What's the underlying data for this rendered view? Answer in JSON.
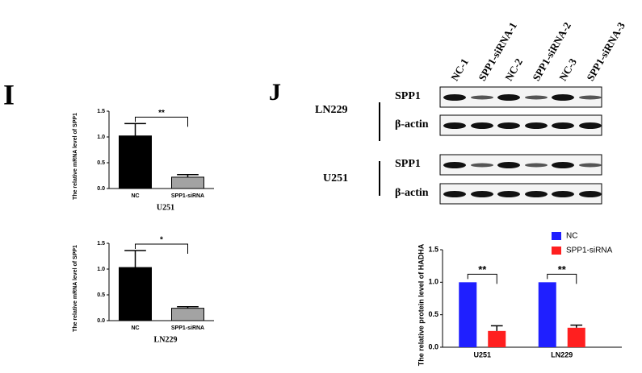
{
  "panels": {
    "left": "I",
    "right": "J"
  },
  "blot": {
    "lanes": [
      "NC-1",
      "SPP1-siRNA-1",
      "NC-2",
      "SPP1-siRNA-2",
      "NC-3",
      "SPP1-siRNA-3"
    ],
    "groups": [
      {
        "cell_line": "LN229",
        "rows": [
          "SPP1",
          "β-actin"
        ]
      },
      {
        "cell_line": "U251",
        "rows": [
          "SPP1",
          "β-actin"
        ]
      }
    ]
  },
  "chart_data": [
    {
      "type": "bar",
      "categories": [
        "NC",
        "SPP1-siRNA"
      ],
      "values": [
        1.02,
        0.22
      ],
      "errors": [
        0.24,
        0.05
      ],
      "colors": [
        "#000000",
        "#a3a3a3"
      ],
      "xlabel": "U251",
      "ylabel": "The relative mRNA level of SPP1",
      "ylim": [
        0,
        1.5
      ],
      "yticks": [
        {
          "value": 0,
          "label": "0.0"
        },
        0.5,
        {
          "value": 1,
          "label": "1.0"
        },
        1.5
      ],
      "significance": "**"
    },
    {
      "type": "bar",
      "categories": [
        "NC",
        "SPP1-siRNA"
      ],
      "values": [
        1.03,
        0.24
      ],
      "errors": [
        0.33,
        0.03
      ],
      "colors": [
        "#000000",
        "#a3a3a3"
      ],
      "xlabel": "LN229",
      "ylabel": "The relative mRNA level of SPP1",
      "ylim": [
        0,
        1.5
      ],
      "yticks": [
        {
          "value": 0,
          "label": "0.0"
        },
        0.5,
        {
          "value": 1,
          "label": "1.0"
        },
        1.5
      ],
      "significance": "*"
    },
    {
      "type": "grouped-bar",
      "categories": [
        "U251",
        "LN229"
      ],
      "ylabel": "The relative protein level of HADHA",
      "series": [
        {
          "name": "NC",
          "color": "#1f1fff",
          "values": [
            1.0,
            1.0
          ]
        },
        {
          "name": "SPP1-siRNA",
          "color": "#ff1f1f",
          "values": [
            0.25,
            0.3
          ],
          "errors": [
            0.08,
            0.04
          ]
        }
      ],
      "ylim": [
        0,
        1.5
      ],
      "yticks": [
        {
          "value": 0,
          "label": "0.0"
        },
        0.5,
        {
          "value": 1,
          "label": "1.0"
        },
        1.5
      ],
      "significance": [
        "**",
        "**"
      ]
    }
  ]
}
